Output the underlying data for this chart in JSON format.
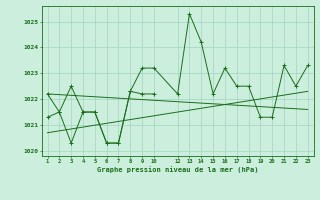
{
  "xlabel": "Graphe pression niveau de la mer (hPa)",
  "x_main": [
    1,
    2,
    3,
    4,
    5,
    6,
    7,
    8,
    9,
    10,
    12,
    13,
    14,
    15,
    16,
    17,
    18,
    19,
    20,
    21,
    22,
    23
  ],
  "y_upper": [
    1022.2,
    1021.5,
    1022.5,
    1021.5,
    1021.5,
    1020.3,
    1020.3,
    1022.3,
    1023.2,
    1023.2,
    1022.2,
    1025.3,
    1024.2,
    1022.2,
    1023.2,
    1022.5,
    1022.5,
    1021.3,
    1021.3,
    1023.3,
    1022.5,
    1023.3
  ],
  "x_lower": [
    1,
    2,
    3,
    4,
    5,
    6,
    7,
    8,
    9,
    10,
    12,
    13,
    14,
    15,
    16,
    17,
    18,
    19,
    20,
    21,
    22,
    23
  ],
  "y_lower": [
    1021.3,
    1021.5,
    1020.3,
    1021.5,
    1021.5,
    1020.3,
    1020.3,
    1022.3,
    1022.2,
    1022.2,
    1022.2,
    1025.3,
    1024.2,
    1022.2,
    1023.2,
    1022.5,
    1022.5,
    1021.3,
    1021.3,
    1023.3,
    1022.5,
    1023.3
  ],
  "trend1_x": [
    1,
    23
  ],
  "trend1_y": [
    1022.2,
    1021.6
  ],
  "trend2_x": [
    1,
    23
  ],
  "trend2_y": [
    1020.7,
    1022.3
  ],
  "ylim": [
    1019.8,
    1025.6
  ],
  "yticks": [
    1020,
    1021,
    1022,
    1023,
    1024,
    1025
  ],
  "xtick_positions": [
    1,
    2,
    3,
    4,
    5,
    6,
    7,
    8,
    9,
    10,
    12,
    13,
    14,
    15,
    16,
    17,
    18,
    19,
    20,
    21,
    22,
    23
  ],
  "xtick_labels": [
    "1",
    "2",
    "3",
    "4",
    "5",
    "6",
    "7",
    "8",
    "9",
    "10",
    "12",
    "13",
    "14",
    "15",
    "16",
    "17",
    "18",
    "19",
    "20",
    "21",
    "22",
    "23"
  ],
  "line_color": "#1a6e1a",
  "bg_color": "#cceedd",
  "grid_color": "#99ccbb"
}
